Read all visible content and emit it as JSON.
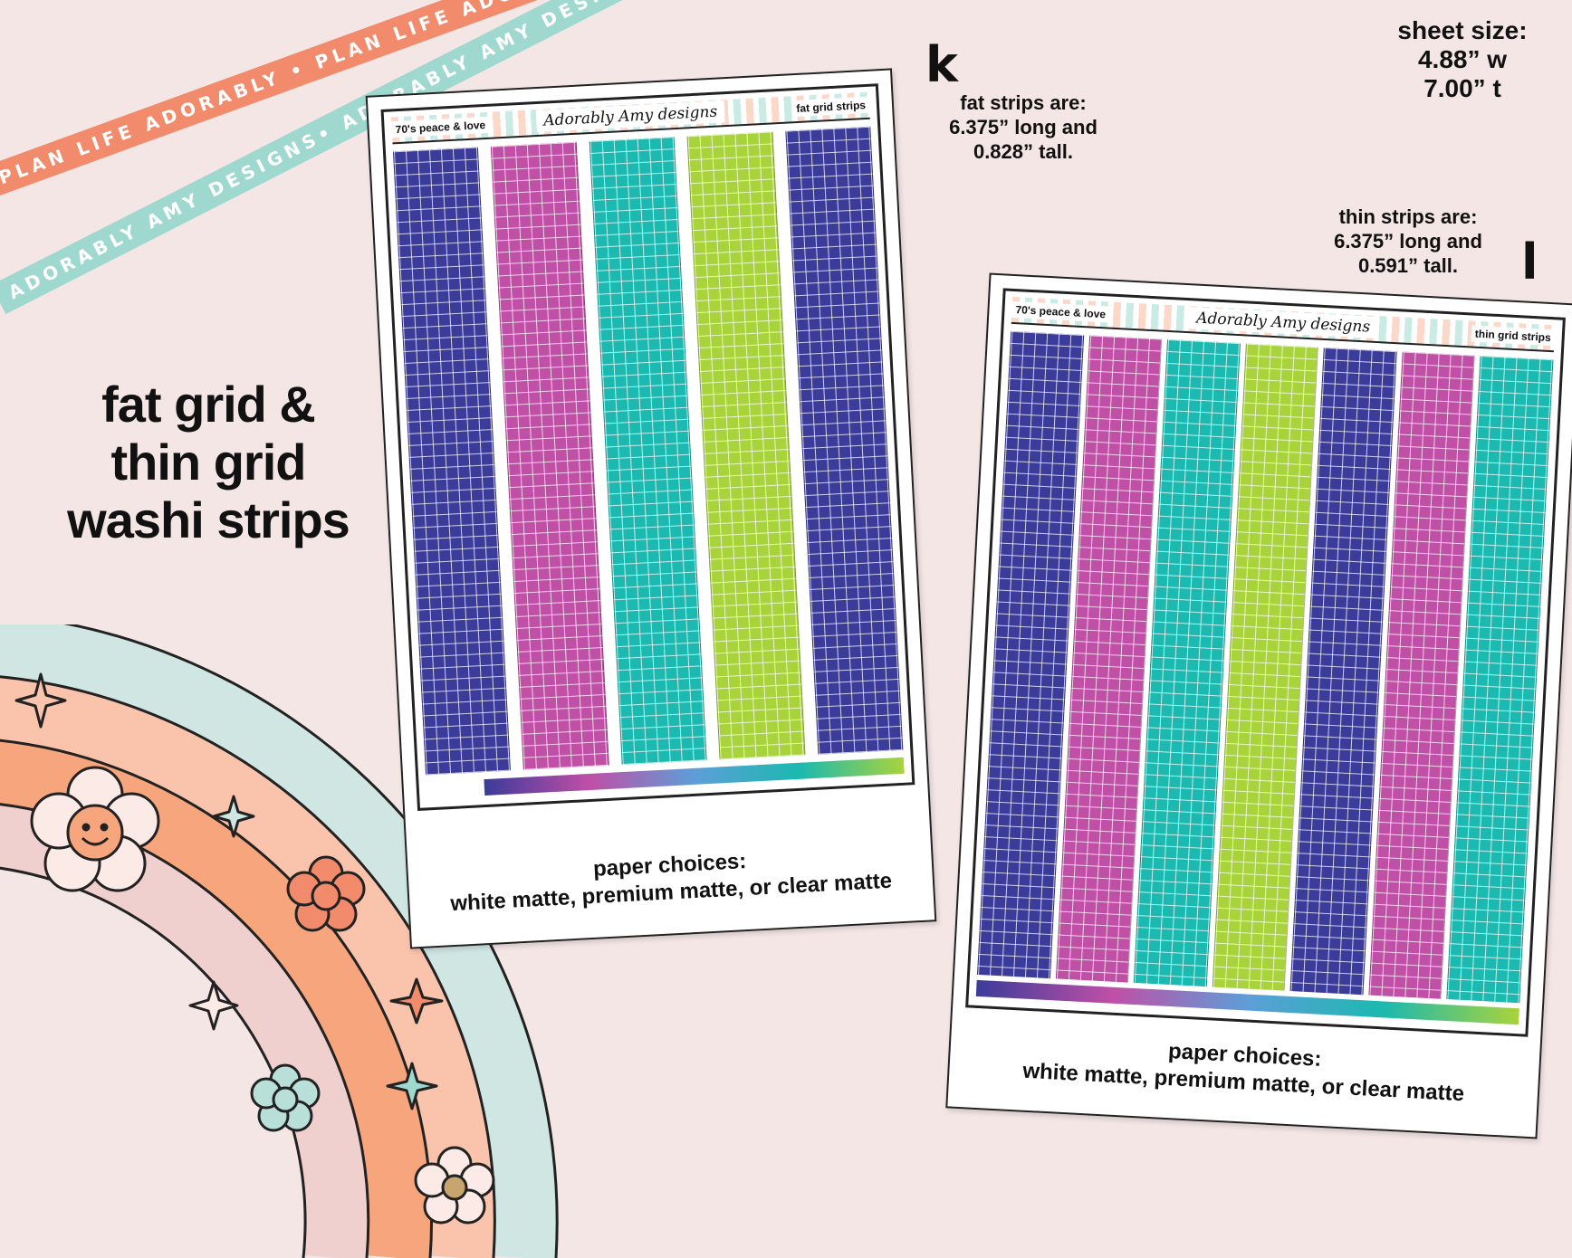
{
  "ribbons": {
    "top": "PLAN LIFE ADORABLY • PLAN LIFE ADORABLY • PLAN LIFE ADORABLY • PLAN LIFE ADORABLY",
    "bottom": "ADORABLY AMY DESIGNS• ADORABLY AMY DESIGNS• ADORABLY AMY DESIGNS• ADORABLY AMY DESIGNS"
  },
  "title": {
    "line1": "fat grid &",
    "line2": "thin grid",
    "line3": "washi strips"
  },
  "sheet_size": {
    "label": "sheet size:",
    "width": "4.88” w",
    "height": "7.00” t"
  },
  "fat_note": {
    "line1": "fat strips are:",
    "line2": "6.375” long and",
    "line3": "0.828” tall."
  },
  "thin_note": {
    "line1": "thin strips are:",
    "line2": "6.375” long and",
    "line3": "0.591” tall."
  },
  "letters": {
    "k": "k",
    "l": "l"
  },
  "fat_sheet": {
    "theme": "70's peace & love",
    "brand": "Adorably Amy designs",
    "label": "fat grid strips",
    "strip_colors": [
      "#3b3b9a",
      "#c04fa6",
      "#1bb9b0",
      "#a9d33b",
      "#3b3b9a"
    ],
    "paper_title": "paper choices:",
    "paper_options": "white matte, premium matte, or clear matte"
  },
  "thin_sheet": {
    "theme": "70's peace & love",
    "brand": "Adorably Amy designs",
    "label": "thin grid strips",
    "strip_colors": [
      "#3b3b9a",
      "#c04fa6",
      "#1bb9b0",
      "#a9d33b",
      "#3b3b9a",
      "#c04fa6",
      "#1bb9b0"
    ],
    "paper_title": "paper choices:",
    "paper_options": "white matte, premium matte, or clear matte"
  },
  "colors": {
    "background": "#f5e6e6",
    "ribbon_coral": "#f28a6c",
    "ribbon_mint": "#9fd8cf",
    "rainbow": [
      "#cfe6e2",
      "#f9c3ac",
      "#f7a57c",
      "#f0d0cf"
    ]
  }
}
